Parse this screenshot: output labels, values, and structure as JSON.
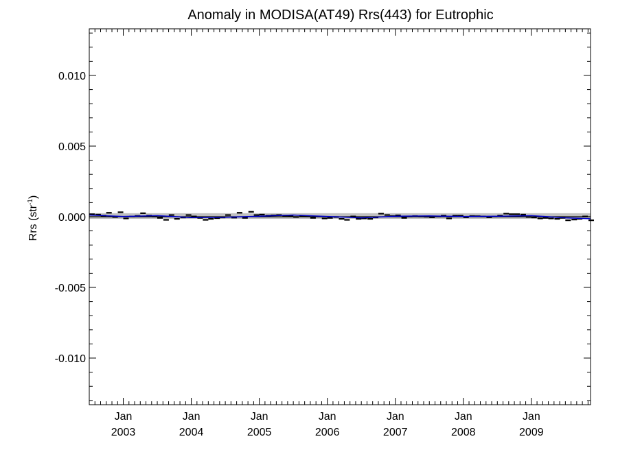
{
  "chart_data": {
    "type": "scatter",
    "title": "Anomaly in MODISA(AT49) Rrs(443) for Eutrophic",
    "ylabel": {
      "main": "Rrs (str",
      "sup": "-1",
      "close": ")"
    },
    "xlabel": "",
    "xlim": [
      2002.5,
      2009.87
    ],
    "ylim": [
      -0.0133,
      0.0133
    ],
    "y_ticks": [
      {
        "value": 0.01,
        "label": "0.010"
      },
      {
        "value": 0.005,
        "label": "0.005"
      },
      {
        "value": 0.0,
        "label": "0.000"
      },
      {
        "value": -0.005,
        "label": "-0.005"
      },
      {
        "value": -0.01,
        "label": "-0.010"
      }
    ],
    "x_ticks": [
      {
        "value": 2003,
        "month": "Jan",
        "year": "2003"
      },
      {
        "value": 2004,
        "month": "Jan",
        "year": "2004"
      },
      {
        "value": 2005,
        "month": "Jan",
        "year": "2005"
      },
      {
        "value": 2006,
        "month": "Jan",
        "year": "2006"
      },
      {
        "value": 2007,
        "month": "Jan",
        "year": "2007"
      },
      {
        "value": 2008,
        "month": "Jan",
        "year": "2008"
      },
      {
        "value": 2009,
        "month": "Jan",
        "year": "2009"
      }
    ],
    "band": {
      "low": -0.00015,
      "high": 0.00025,
      "color": "#c0c0c0"
    },
    "colors": {
      "points": "#000000",
      "trend": "#0000cc",
      "zero_line": "#000000"
    },
    "series": [
      {
        "points": {
          "x": [
            2002.54,
            2002.63,
            2002.71,
            2002.79,
            2002.88,
            2002.96,
            2003.04,
            2003.13,
            2003.21,
            2003.29,
            2003.38,
            2003.46,
            2003.54,
            2003.63,
            2003.71,
            2003.79,
            2003.88,
            2003.96,
            2004.04,
            2004.13,
            2004.21,
            2004.29,
            2004.38,
            2004.46,
            2004.54,
            2004.63,
            2004.71,
            2004.79,
            2004.88,
            2004.96,
            2005.04,
            2005.13,
            2005.21,
            2005.29,
            2005.38,
            2005.46,
            2005.54,
            2005.63,
            2005.71,
            2005.79,
            2005.88,
            2005.96,
            2006.04,
            2006.13,
            2006.21,
            2006.29,
            2006.38,
            2006.46,
            2006.54,
            2006.63,
            2006.71,
            2006.79,
            2006.88,
            2006.96,
            2007.04,
            2007.13,
            2007.21,
            2007.29,
            2007.38,
            2007.46,
            2007.54,
            2007.63,
            2007.71,
            2007.79,
            2007.88,
            2007.96,
            2008.04,
            2008.13,
            2008.21,
            2008.29,
            2008.38,
            2008.46,
            2008.54,
            2008.63,
            2008.71,
            2008.79,
            2008.88,
            2008.96,
            2009.04,
            2009.13,
            2009.21,
            2009.29,
            2009.38,
            2009.46,
            2009.54,
            2009.63,
            2009.71,
            2009.79,
            2009.88
          ],
          "y": [
            0.00018,
            0.00015,
            8e-05,
            0.00028,
            -2e-05,
            0.00032,
            -0.00012,
            2e-05,
            6e-05,
            0.00025,
            8e-05,
            2e-05,
            -8e-05,
            -0.00022,
            0.00012,
            -0.00015,
            -5e-05,
            0.00012,
            2e-05,
            -8e-05,
            -0.00022,
            -0.00015,
            -0.0001,
            -5e-05,
            0.00012,
            -6e-05,
            0.00028,
            -8e-05,
            0.00035,
            0.00012,
            0.00015,
            8e-05,
            0.0001,
            0.00012,
            8e-05,
            5e-05,
            -2e-05,
            5e-05,
            4e-05,
            -8e-05,
            2e-05,
            -0.00012,
            -8e-05,
            -2e-05,
            -0.00015,
            -0.00022,
            2e-05,
            -0.00015,
            -0.00012,
            -0.00015,
            -5e-05,
            0.00022,
            0.00012,
            5e-05,
            0.0001,
            -8e-05,
            2e-05,
            5e-05,
            2e-05,
            0.0,
            -4e-05,
            2e-05,
            8e-05,
            -0.00012,
            8e-05,
            8e-05,
            -4e-05,
            5e-05,
            4e-05,
            2e-05,
            -4e-05,
            2e-05,
            8e-05,
            0.00022,
            0.00018,
            0.00018,
            0.00015,
            -2e-05,
            -5e-05,
            -0.00012,
            -8e-05,
            -0.00012,
            -0.00015,
            -8e-05,
            -0.00025,
            -0.0002,
            -0.00015,
            2e-05,
            -0.00025
          ]
        },
        "trend": {
          "x": [
            2002.5,
            2003.0,
            2003.5,
            2004.0,
            2004.5,
            2005.0,
            2005.5,
            2006.0,
            2006.5,
            2007.0,
            2007.5,
            2008.0,
            2008.5,
            2009.0,
            2009.5,
            2009.87
          ],
          "y": [
            0.00012,
            2e-05,
            8e-05,
            -6e-05,
            -4e-05,
            4e-05,
            0.00012,
            2e-05,
            -8e-05,
            4e-05,
            6e-05,
            2e-05,
            4e-05,
            8e-05,
            -8e-05,
            -0.00014
          ]
        }
      }
    ]
  }
}
